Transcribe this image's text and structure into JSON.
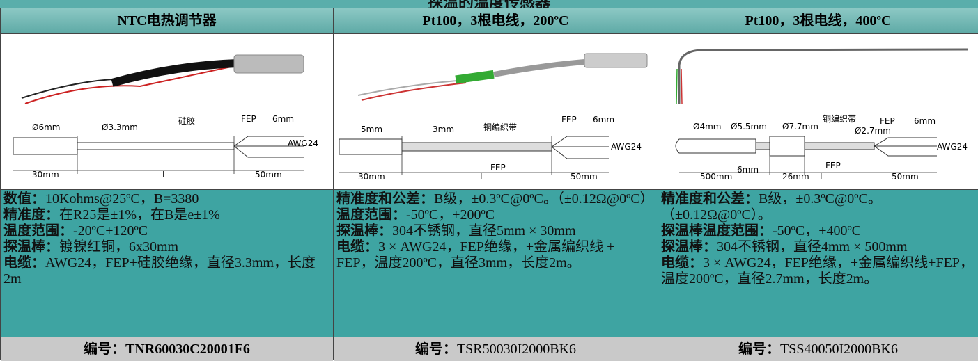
{
  "title": "探温的温度传感器",
  "columns": [
    {
      "header": "NTC电热调节器",
      "diagram_labels": [
        "Ø6mm",
        "Ø3.3mm",
        "硅胶",
        "FEP",
        "6mm",
        "AWG24",
        "30mm",
        "L",
        "50mm"
      ],
      "specs": [
        {
          "label": "数值：",
          "text": "10Kohms@25ºC，B=3380"
        },
        {
          "label": "精准度：",
          "text": "在R25是±1%，在B是e±1%"
        },
        {
          "label": "温度范围：",
          "text": "-20ºC+120ºC"
        },
        {
          "label": "探温棒：",
          "text": "镀镍红铜，6x30mm"
        },
        {
          "label": "电缆：",
          "text": "AWG24，FEP+硅胶绝缘，直径3.3mm，长度2m"
        }
      ],
      "footer": {
        "label": "编号：",
        "code": "TNR60030C20001F6"
      }
    },
    {
      "header": "Pt100，3根电线，200ºC",
      "diagram_labels": [
        "5mm",
        "3mm",
        "铜编织带",
        "FEP",
        "6mm",
        "AWG24",
        "FEP",
        "30mm",
        "L",
        "50mm"
      ],
      "specs": [
        {
          "label": "精准度和公差：",
          "text": "B级，±0.3ºC@0ºC。（±0.12Ω@0ºC）"
        },
        {
          "label": "温度范围：",
          "text": "-50ºC，+200ºC"
        },
        {
          "label": "探温棒：",
          "text": "304不锈钢，直径5mm × 30mm"
        },
        {
          "label": "电缆：",
          "text": "3 × AWG24，FEP绝缘，+金属编织线 + FEP，温度200ºC，直径3mm，长度2m。"
        }
      ],
      "footer": {
        "label": "编号：",
        "code": "TSR50030I2000BK6"
      }
    },
    {
      "header": "Pt100，3根电线，400ºC",
      "diagram_labels": [
        "Ø4mm",
        "Ø5.5mm",
        "Ø7.7mm",
        "铜编织带",
        "Ø2.7mm",
        "FEP",
        "6mm",
        "AWG24",
        "FEP",
        "500mm",
        "6mm",
        "26mm",
        "L",
        "50mm"
      ],
      "specs": [
        {
          "label": "精准度和公差：",
          "text": "B级，±0.3ºC@0ºC。（±0.12Ω@0ºC）。"
        },
        {
          "label": "探温棒温度范围：",
          "text": "-50ºC，+400ºC"
        },
        {
          "label": "探温棒：",
          "text": "304不锈钢，直径4mm × 500mm"
        },
        {
          "label": "电缆：",
          "text": "3 × AWG24，FEP绝缘，+金属编织线+FEP，温度200ºC，直径2.7mm，长度2m。"
        }
      ],
      "footer": {
        "label": "编号：",
        "code": "TSS40050I2000BK6"
      }
    }
  ]
}
